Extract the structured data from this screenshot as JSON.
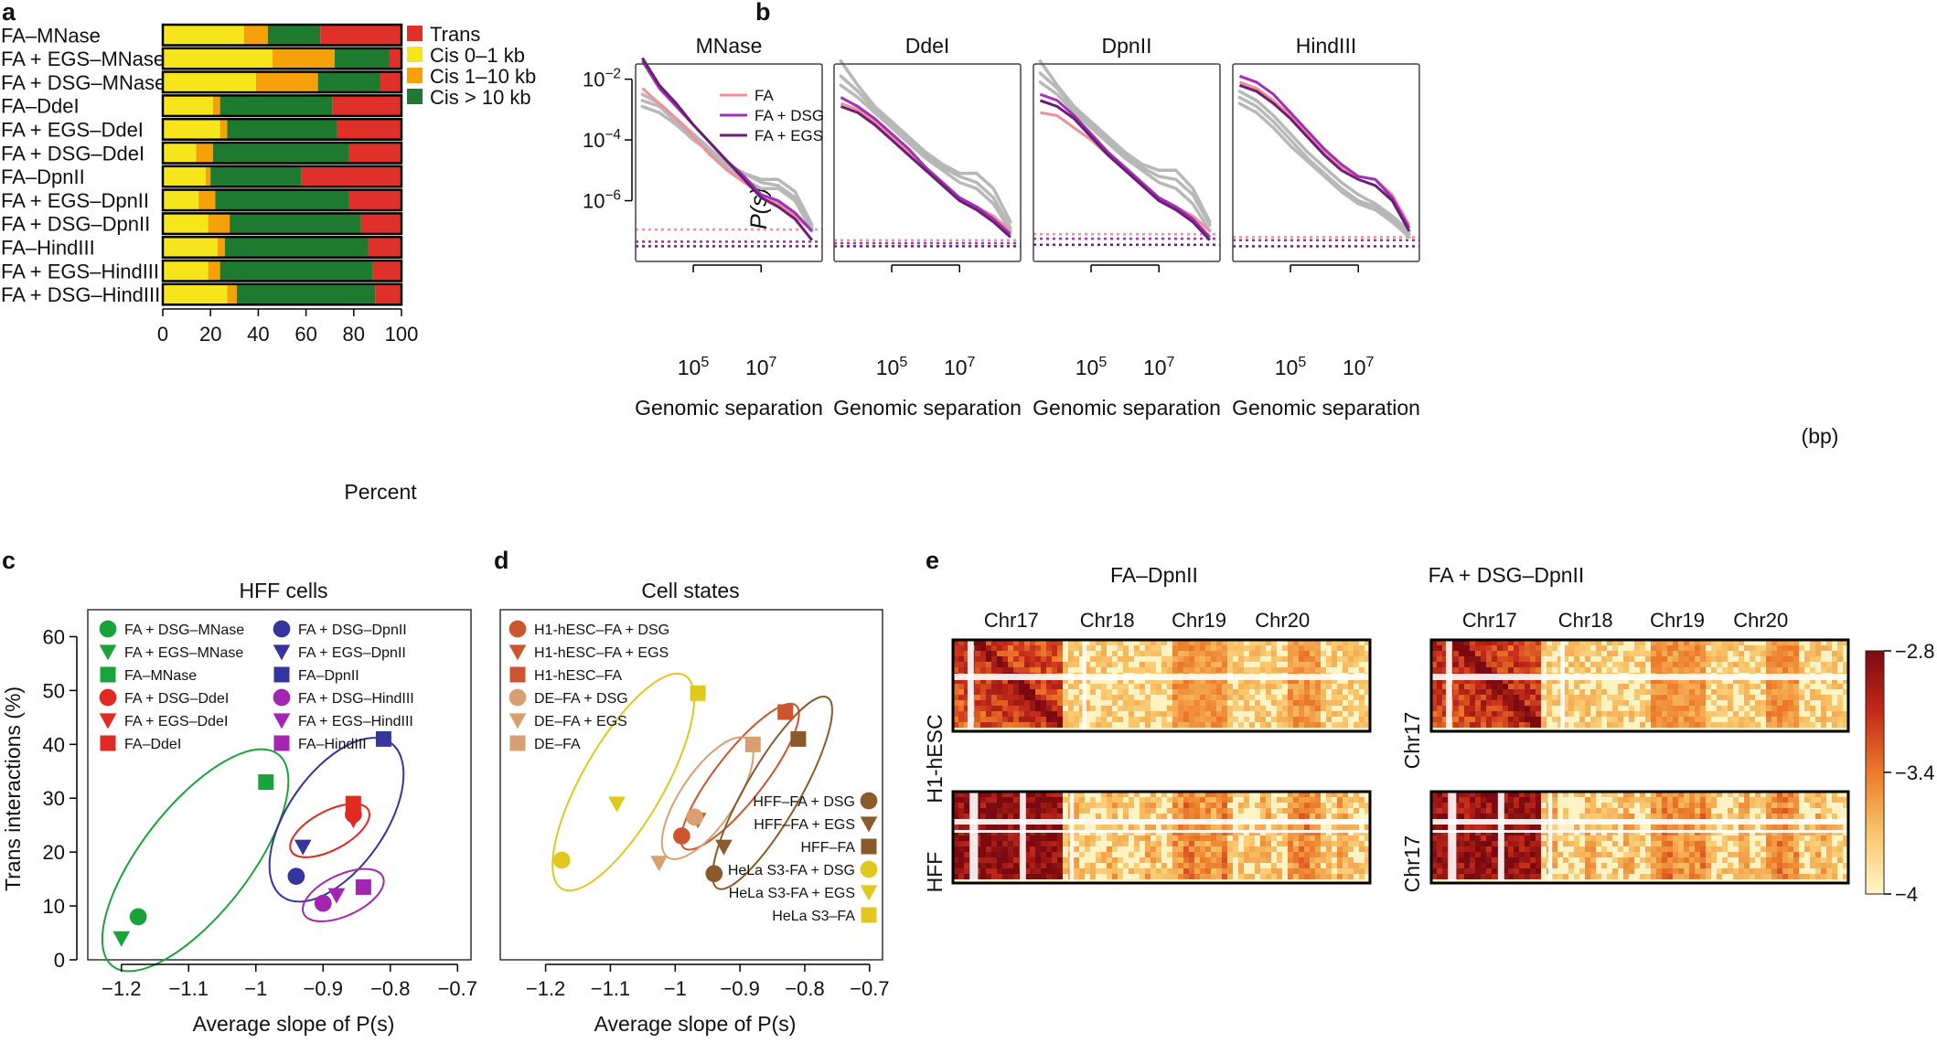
{
  "panel_letters": {
    "a": "a",
    "b": "b",
    "c": "c",
    "d": "d",
    "e": "e"
  },
  "chart_data": [
    {
      "id": "a",
      "type": "bar",
      "stacked": true,
      "orientation": "horizontal",
      "xlabel": "Percent",
      "xlim": [
        0,
        100
      ],
      "xticks": [
        0,
        20,
        40,
        60,
        80,
        100
      ],
      "legend_position": "right",
      "categories": [
        "FA–MNase",
        "FA + EGS–MNase",
        "FA + DSG–MNase",
        "FA–DdeI",
        "FA + EGS–DdeI",
        "FA + DSG–DdeI",
        "FA–DpnII",
        "FA + EGS–DpnII",
        "FA + DSG–DpnII",
        "FA–HindIII",
        "FA + EGS–HindIII",
        "FA + DSG–HindIII"
      ],
      "series": [
        {
          "name": "Cis 0–1 kb",
          "color": "#f7e51b",
          "values": [
            34,
            46,
            39,
            21,
            24,
            14,
            18,
            15,
            19,
            23,
            19,
            27
          ]
        },
        {
          "name": "Cis 1–10 kb",
          "color": "#f7a10a",
          "values": [
            10,
            26,
            26,
            3,
            3,
            7,
            2,
            7,
            9,
            3,
            5,
            4
          ]
        },
        {
          "name": "Cis > 10 kb",
          "color": "#1e7a2e",
          "values": [
            22,
            23,
            26,
            47,
            46,
            57,
            38,
            56,
            55,
            60,
            64,
            58
          ]
        },
        {
          "name": "Trans",
          "color": "#e0302a",
          "values": [
            34,
            5,
            9,
            29,
            27,
            22,
            42,
            22,
            17,
            14,
            12,
            11
          ]
        }
      ]
    },
    {
      "id": "b",
      "type": "line",
      "ylabel": "P(s)",
      "xlabel": "Genomic separation",
      "xlabel_unit": "(bp)",
      "xticks_log10": [
        5,
        7
      ],
      "xtick_labels": [
        "10^5",
        "10^7"
      ],
      "ytick_labels": [
        "10^-2",
        "10^-4",
        "10^-6"
      ],
      "xlim_log10": [
        3.3,
        8.8
      ],
      "ylim_log10": [
        -8,
        -1.5
      ],
      "legend_position": "top-right",
      "legend": [
        {
          "name": "FA",
          "color": "#f0909a"
        },
        {
          "name": "FA + DSG",
          "color": "#a030b8"
        },
        {
          "name": "FA + EGS",
          "color": "#6a1f72"
        }
      ],
      "x_log10": [
        3.5,
        4.0,
        4.5,
        5.0,
        5.5,
        6.0,
        6.5,
        7.0,
        7.5,
        8.0,
        8.5
      ],
      "panels": [
        {
          "title": "MNase",
          "FA": [
            -2.3,
            -2.8,
            -3.3,
            -3.9,
            -4.5,
            -5.0,
            -5.4,
            -5.8,
            -6.1,
            -6.5,
            -7.0
          ],
          "FA + DSG": [
            -1.4,
            -2.3,
            -2.9,
            -3.5,
            -4.1,
            -4.7,
            -5.2,
            -5.8,
            -6.0,
            -6.4,
            -7.0
          ],
          "FA + EGS": [
            -1.3,
            -2.2,
            -2.8,
            -3.5,
            -4.1,
            -4.7,
            -5.3,
            -5.9,
            -6.2,
            -6.6,
            -7.3
          ],
          "gray": [
            [
              -2.5,
              -2.8,
              -3.3,
              -3.8,
              -4.3,
              -4.8,
              -5.1,
              -5.3,
              -5.3,
              -5.7,
              -6.8
            ],
            [
              -2.9,
              -3.1,
              -3.5,
              -4.0,
              -4.4,
              -4.8,
              -5.1,
              -5.4,
              -5.5,
              -5.9,
              -6.9
            ],
            [
              -2.7,
              -2.9,
              -3.4,
              -3.9,
              -4.4,
              -4.9,
              -5.3,
              -5.6,
              -5.6,
              -6.0,
              -7.0
            ]
          ],
          "floor": {
            "FA": -6.95,
            "FA + DSG": -7.35,
            "FA + EGS": -7.5
          }
        },
        {
          "title": "DdeI",
          "FA": [
            -2.8,
            -3.0,
            -3.4,
            -3.9,
            -4.4,
            -4.9,
            -5.5,
            -5.9,
            -6.2,
            -6.5,
            -7.0
          ],
          "FA + DSG": [
            -2.6,
            -2.9,
            -3.3,
            -3.8,
            -4.3,
            -4.9,
            -5.4,
            -5.9,
            -6.2,
            -6.6,
            -7.1
          ],
          "FA + EGS": [
            -2.9,
            -3.1,
            -3.5,
            -4.0,
            -4.5,
            -5.0,
            -5.5,
            -6.0,
            -6.3,
            -6.7,
            -7.2
          ],
          "gray": [
            [
              -1.4,
              -2.2,
              -2.9,
              -3.4,
              -3.9,
              -4.4,
              -4.8,
              -5.1,
              -5.1,
              -5.6,
              -6.7
            ],
            [
              -1.9,
              -2.4,
              -3.0,
              -3.5,
              -4.0,
              -4.5,
              -4.9,
              -5.2,
              -5.4,
              -5.9,
              -6.9
            ],
            [
              -2.2,
              -2.6,
              -3.1,
              -3.6,
              -4.1,
              -4.6,
              -5.0,
              -5.4,
              -5.6,
              -6.1,
              -7.0
            ]
          ],
          "floor": {
            "FA": -7.3,
            "FA + DSG": -7.4,
            "FA + EGS": -7.5
          }
        },
        {
          "title": "DpnII",
          "FA": [
            -3.1,
            -3.2,
            -3.6,
            -4.0,
            -4.5,
            -5.0,
            -5.5,
            -6.0,
            -6.2,
            -6.5,
            -7.0
          ],
          "FA + DSG": [
            -2.5,
            -2.7,
            -3.2,
            -3.8,
            -4.4,
            -4.9,
            -5.4,
            -5.9,
            -6.2,
            -6.6,
            -7.2
          ],
          "FA + EGS": [
            -2.7,
            -2.9,
            -3.3,
            -3.9,
            -4.5,
            -5.0,
            -5.5,
            -6.0,
            -6.3,
            -6.7,
            -7.3
          ],
          "gray": [
            [
              -1.4,
              -2.2,
              -2.9,
              -3.4,
              -3.9,
              -4.4,
              -4.8,
              -5.0,
              -5.0,
              -5.6,
              -6.7
            ],
            [
              -1.8,
              -2.3,
              -3.0,
              -3.5,
              -4.0,
              -4.5,
              -4.9,
              -5.2,
              -5.3,
              -5.8,
              -6.8
            ],
            [
              -2.1,
              -2.5,
              -3.1,
              -3.6,
              -4.1,
              -4.6,
              -5.0,
              -5.4,
              -5.6,
              -6.1,
              -7.0
            ]
          ],
          "floor": {
            "FA": -7.1,
            "FA + DSG": -7.25,
            "FA + EGS": -7.45
          }
        },
        {
          "title": "HindIII",
          "FA": [
            -2.1,
            -2.3,
            -2.7,
            -3.2,
            -3.8,
            -4.4,
            -4.9,
            -5.2,
            -5.3,
            -5.8,
            -6.8
          ],
          "FA + DSG": [
            -1.9,
            -2.1,
            -2.5,
            -3.1,
            -3.7,
            -4.3,
            -4.8,
            -5.2,
            -5.3,
            -5.9,
            -6.9
          ],
          "FA + EGS": [
            -2.2,
            -2.4,
            -2.8,
            -3.3,
            -3.9,
            -4.5,
            -5.0,
            -5.3,
            -5.5,
            -6.0,
            -7.0
          ],
          "gray": [
            [
              -2.4,
              -2.7,
              -3.2,
              -3.8,
              -4.4,
              -4.9,
              -5.4,
              -5.8,
              -6.1,
              -6.5,
              -7.0
            ],
            [
              -2.6,
              -2.9,
              -3.4,
              -4.0,
              -4.6,
              -5.1,
              -5.6,
              -6.0,
              -6.2,
              -6.6,
              -7.1
            ],
            [
              -2.8,
              -3.1,
              -3.6,
              -4.2,
              -4.7,
              -5.2,
              -5.7,
              -6.1,
              -6.3,
              -6.7,
              -7.2
            ]
          ],
          "floor": {
            "FA": -7.2,
            "FA + DSG": -7.3,
            "FA + EGS": -7.5
          }
        }
      ]
    },
    {
      "id": "c",
      "type": "scatter",
      "title": "HFF cells",
      "xlabel": "Average slope of P(s)",
      "ylabel": "Trans interactions (%)",
      "xlim": [
        -1.25,
        -0.68
      ],
      "ylim": [
        0,
        65
      ],
      "xticks": [
        -1.2,
        -1.1,
        -1.0,
        -0.9,
        -0.8,
        -0.7
      ],
      "xtick_labels": [
        "−1.2",
        "−1.1",
        "−1",
        "−0.9",
        "−0.8",
        "−0.7"
      ],
      "yticks": [
        0,
        10,
        20,
        30,
        40,
        50,
        60
      ],
      "legend_position": "top",
      "points": [
        {
          "label": "FA + DSG–MNase",
          "marker": "circle",
          "color": "#1aa33a",
          "x": -1.175,
          "y": 8
        },
        {
          "label": "FA + EGS–MNase",
          "marker": "triangle",
          "color": "#1aa33a",
          "x": -1.2,
          "y": 4
        },
        {
          "label": "FA–MNase",
          "marker": "square",
          "color": "#1aa33a",
          "x": -0.985,
          "y": 33
        },
        {
          "label": "FA + DSG–DdeI",
          "marker": "circle",
          "color": "#e02a22",
          "x": -0.855,
          "y": 27
        },
        {
          "label": "FA + EGS–DdeI",
          "marker": "triangle",
          "color": "#e02a22",
          "x": -0.855,
          "y": 26
        },
        {
          "label": "FA–DdeI",
          "marker": "square",
          "color": "#e02a22",
          "x": -0.855,
          "y": 29
        },
        {
          "label": "FA + DSG–DpnII",
          "marker": "circle",
          "color": "#3535a0",
          "x": -0.94,
          "y": 15.5
        },
        {
          "label": "FA + EGS–DpnII",
          "marker": "triangle",
          "color": "#3535a0",
          "x": -0.93,
          "y": 21
        },
        {
          "label": "FA–DpnII",
          "marker": "square",
          "color": "#3535a0",
          "x": -0.81,
          "y": 41
        },
        {
          "label": "FA + DSG–HindIII",
          "marker": "circle",
          "color": "#a326b3",
          "x": -0.9,
          "y": 10.5
        },
        {
          "label": "FA + EGS–HindIII",
          "marker": "triangle",
          "color": "#a326b3",
          "x": -0.88,
          "y": 12
        },
        {
          "label": "FA–HindIII",
          "marker": "square",
          "color": "#a326b3",
          "x": -0.84,
          "y": 13.5
        }
      ],
      "ellipses": [
        {
          "color": "#1aa33a",
          "cx": -1.09,
          "cy": 18.5,
          "rx": 0.2,
          "ry": 10,
          "angle": -52
        },
        {
          "color": "#3535a0",
          "cx": -0.88,
          "cy": 26,
          "rx": 0.14,
          "ry": 9,
          "angle": -55
        },
        {
          "color": "#e02a22",
          "cx": -0.89,
          "cy": 24,
          "rx": 0.065,
          "ry": 3.6,
          "angle": -28
        },
        {
          "color": "#a326b3",
          "cx": -0.87,
          "cy": 12,
          "rx": 0.065,
          "ry": 3.8,
          "angle": -25
        }
      ]
    },
    {
      "id": "d",
      "type": "scatter",
      "title": "Cell states",
      "xlabel": "Average slope of P(s)",
      "xlim": [
        -1.27,
        -0.68
      ],
      "ylim": [
        0,
        65
      ],
      "xticks": [
        -1.2,
        -1.1,
        -1.0,
        -0.9,
        -0.8,
        -0.7
      ],
      "xtick_labels": [
        "−1.2",
        "−1.1",
        "−1",
        "−0.9",
        "−0.8",
        "−0.7"
      ],
      "legend_position": "top-left and bottom-right",
      "points": [
        {
          "label": "H1-hESC–FA + DSG",
          "marker": "circle",
          "color": "#cc5530",
          "x": -0.99,
          "y": 23
        },
        {
          "label": "H1-hESC–FA + EGS",
          "marker": "triangle",
          "color": "#cc5530",
          "x": -0.965,
          "y": 26
        },
        {
          "label": "H1-hESC–FA",
          "marker": "square",
          "color": "#cc5530",
          "x": -0.83,
          "y": 46
        },
        {
          "label": "DE–FA + DSG",
          "marker": "circle",
          "color": "#d8a070",
          "x": -0.97,
          "y": 26.5
        },
        {
          "label": "DE–FA + EGS",
          "marker": "triangle",
          "color": "#d8a070",
          "x": -1.025,
          "y": 18
        },
        {
          "label": "DE–FA",
          "marker": "square",
          "color": "#d8a070",
          "x": -0.88,
          "y": 40
        },
        {
          "label": "HFF–FA + DSG",
          "marker": "circle",
          "color": "#8a5a2a",
          "x": -0.94,
          "y": 16
        },
        {
          "label": "HFF–FA + EGS",
          "marker": "triangle",
          "color": "#8a5a2a",
          "x": -0.925,
          "y": 21
        },
        {
          "label": "HFF–FA",
          "marker": "square",
          "color": "#8a5a2a",
          "x": -0.81,
          "y": 41
        },
        {
          "label": "HeLa S3-FA + DSG",
          "marker": "circle",
          "color": "#e0c81e",
          "x": -1.175,
          "y": 18.5
        },
        {
          "label": "HeLa S3-FA + EGS",
          "marker": "triangle",
          "color": "#e0c81e",
          "x": -1.09,
          "y": 29
        },
        {
          "label": "HeLa S3–FA",
          "marker": "square",
          "color": "#e0c81e",
          "x": -0.965,
          "y": 49.5
        }
      ],
      "ellipses": [
        {
          "color": "#e0c81e",
          "cx": -1.08,
          "cy": 33,
          "rx": 0.19,
          "ry": 7.5,
          "angle": -60
        },
        {
          "color": "#cc5530",
          "cx": -0.9,
          "cy": 34,
          "rx": 0.14,
          "ry": 4.5,
          "angle": -52
        },
        {
          "color": "#d8a070",
          "cx": -0.95,
          "cy": 30,
          "rx": 0.11,
          "ry": 5,
          "angle": -56
        },
        {
          "color": "#8a5a2a",
          "cx": -0.85,
          "cy": 31,
          "rx": 0.17,
          "ry": 5,
          "angle": -60
        }
      ]
    },
    {
      "id": "e",
      "type": "heatmap",
      "columns": [
        "FA–DpnII",
        "FA + DSG–DpnII"
      ],
      "chromosomes": [
        "Chr17",
        "Chr18",
        "Chr19",
        "Chr20"
      ],
      "rows": [
        {
          "left_label": "H1-hESC",
          "right_label": "Chr17"
        },
        {
          "left_label": "HFF",
          "right_label": "Chr17"
        }
      ],
      "colorbar": {
        "min": -4,
        "max": -2.8,
        "ticks": [
          -2.8,
          -3.4,
          -4
        ],
        "tick_labels": [
          "−2.8",
          "−3.4",
          "−4"
        ],
        "colors": [
          "#fff6c8",
          "#f9c66a",
          "#ec7a2a",
          "#c42a1a",
          "#7a0a10"
        ]
      }
    }
  ]
}
